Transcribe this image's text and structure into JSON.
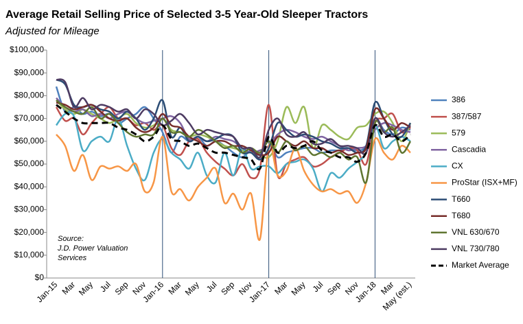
{
  "chart_data": {
    "type": "line",
    "title": "Average Retail Selling Price of Selected 3-5 Year-Old Sleeper Tractors",
    "subtitle": "Adjusted for Mileage",
    "annotation": [
      "Source:",
      "J.D. Power Valuation",
      "Services"
    ],
    "categories": [
      "Jan-15",
      null,
      "Mar",
      null,
      "May",
      null,
      "Jul",
      null,
      "Sep",
      null,
      "Nov",
      null,
      "Jan-16",
      null,
      "Mar",
      null,
      "May",
      null,
      "Jul",
      null,
      "Sep",
      null,
      "Nov",
      null,
      "Jan-17",
      null,
      "Mar",
      null,
      "May",
      null,
      "Jul",
      null,
      "Sep",
      null,
      "Nov",
      null,
      "Jan-18",
      null,
      "Mar",
      null,
      "May (est.)"
    ],
    "ylim": [
      0,
      100000
    ],
    "yticks": [
      {
        "value": 0,
        "label": "$0"
      },
      {
        "value": 10000,
        "label": "$10,000"
      },
      {
        "value": 20000,
        "label": "$20,000"
      },
      {
        "value": 30000,
        "label": "$30,000"
      },
      {
        "value": 40000,
        "label": "$40,000"
      },
      {
        "value": 50000,
        "label": "$50,000"
      },
      {
        "value": 60000,
        "label": "$60,000"
      },
      {
        "value": 70000,
        "label": "$70,000"
      },
      {
        "value": 80000,
        "label": "$80,000"
      },
      {
        "value": 90000,
        "label": "$90,000"
      },
      {
        "value": 100000,
        "label": "$100,000"
      }
    ],
    "legend": "right",
    "series": [
      {
        "name": "386",
        "color": "#4f81bd",
        "values": [
          84000,
          73000,
          75000,
          72000,
          73000,
          71000,
          72000,
          68000,
          70000,
          72000,
          75000,
          70000,
          64000,
          55000,
          62000,
          60000,
          62000,
          58000,
          60000,
          58000,
          55000,
          53000,
          56000,
          54000,
          60000,
          53000,
          55000,
          56000,
          57000,
          57000,
          55000,
          56000,
          56000,
          57000,
          56000,
          58000,
          70000,
          65000,
          63000,
          66000,
          65000
        ]
      },
      {
        "name": "387/587",
        "color": "#c0504d",
        "values": [
          75000,
          69000,
          70000,
          63000,
          68000,
          72000,
          75000,
          70000,
          70000,
          67000,
          68000,
          65000,
          67000,
          57000,
          54000,
          60000,
          61000,
          55000,
          51000,
          48000,
          45000,
          50000,
          44000,
          48000,
          76000,
          45000,
          50000,
          52000,
          53000,
          49000,
          50000,
          53000,
          55000,
          57000,
          56000,
          50000,
          68000,
          70000,
          72000,
          64000,
          66000
        ]
      },
      {
        "name": "579",
        "color": "#9bbb59",
        "values": [
          78000,
          74000,
          72000,
          74000,
          72000,
          70000,
          68000,
          70000,
          72000,
          68000,
          66000,
          67000,
          70000,
          65000,
          64000,
          62000,
          63000,
          62000,
          60000,
          58000,
          57000,
          56000,
          55000,
          54000,
          53000,
          60000,
          75000,
          68000,
          75000,
          57000,
          67000,
          65000,
          62000,
          61000,
          66000,
          67000,
          72000,
          73000,
          68000,
          60000,
          68000
        ]
      },
      {
        "name": "Cascadia",
        "color": "#8064a2",
        "values": [
          79000,
          75000,
          73000,
          74000,
          71000,
          72000,
          70000,
          72000,
          73000,
          70000,
          68000,
          69000,
          70000,
          71000,
          68000,
          61000,
          62000,
          60000,
          62000,
          61000,
          60000,
          57000,
          55000,
          56000,
          58000,
          63000,
          65000,
          64000,
          62000,
          61000,
          62000,
          60000,
          58000,
          56000,
          57000,
          58000,
          65000,
          68000,
          67000,
          65000,
          64000
        ]
      },
      {
        "name": "CX",
        "color": "#4bacc6",
        "values": [
          67000,
          72000,
          71000,
          56000,
          60000,
          62000,
          60000,
          70000,
          58000,
          48000,
          43000,
          55000,
          61000,
          55000,
          52000,
          48000,
          55000,
          45000,
          42000,
          55000,
          45000,
          57000,
          48000,
          49000,
          49000,
          46000,
          50000,
          51000,
          52000,
          48000,
          38000,
          46000,
          44000,
          48000,
          51000,
          55000,
          67000,
          57000,
          60000,
          62000,
          60000
        ]
      },
      {
        "name": "ProStar (ISX+MF)",
        "color": "#f79646",
        "values": [
          63000,
          58000,
          47000,
          54000,
          43000,
          49000,
          48000,
          49000,
          47000,
          50000,
          38000,
          42000,
          62000,
          38000,
          39000,
          34000,
          40000,
          44000,
          48000,
          33000,
          37000,
          30000,
          37000,
          17000,
          58000,
          45000,
          47000,
          57000,
          47000,
          41000,
          38000,
          39000,
          37000,
          38000,
          33000,
          42000,
          61000,
          55000,
          52000,
          58000,
          55000
        ]
      },
      {
        "name": "T660",
        "color": "#2c4d75",
        "values": [
          87000,
          85000,
          76000,
          75000,
          76000,
          74000,
          73000,
          70000,
          73000,
          70000,
          65000,
          70000,
          78000,
          62000,
          66000,
          60000,
          62000,
          60000,
          61000,
          63000,
          62000,
          55000,
          55000,
          52000,
          57000,
          68000,
          65000,
          62000,
          63000,
          62000,
          60000,
          59000,
          57000,
          57000,
          55000,
          58000,
          77000,
          70000,
          63000,
          62000,
          68000
        ]
      },
      {
        "name": "T680",
        "color": "#772c2a",
        "values": [
          77000,
          76000,
          74000,
          75000,
          76000,
          73000,
          70000,
          69000,
          70000,
          66000,
          64000,
          66000,
          72000,
          67000,
          66000,
          62000,
          60000,
          58000,
          60000,
          60000,
          58000,
          58000,
          56000,
          54000,
          55000,
          62000,
          60000,
          58000,
          60000,
          57000,
          57000,
          55000,
          56000,
          54000,
          55000,
          57000,
          74000,
          70000,
          65000,
          68000,
          66000
        ]
      },
      {
        "name": "VNL 630/670",
        "color": "#5f7530",
        "values": [
          78000,
          75000,
          73000,
          72000,
          75000,
          70000,
          72000,
          68000,
          64000,
          62000,
          63000,
          63000,
          70000,
          64000,
          64000,
          62000,
          65000,
          63000,
          60000,
          57000,
          58000,
          55000,
          57000,
          55000,
          60000,
          55000,
          60000,
          56000,
          58000,
          54000,
          55000,
          53000,
          55000,
          52000,
          53000,
          42000,
          68000,
          64000,
          66000,
          55000,
          60000
        ]
      },
      {
        "name": "VNL 730/780",
        "color": "#4d3b62",
        "values": [
          87000,
          86000,
          75000,
          79000,
          74000,
          76000,
          75000,
          73000,
          74000,
          70000,
          74000,
          72000,
          67000,
          69000,
          72000,
          68000,
          63000,
          65000,
          64000,
          63000,
          62000,
          57000,
          57000,
          53000,
          65000,
          70000,
          63000,
          62000,
          64000,
          59000,
          59000,
          61000,
          58000,
          58000,
          57000,
          55000,
          70000,
          64000,
          62000,
          64000,
          67000
        ]
      },
      {
        "name": "Market Average",
        "color": "#000000",
        "line_style": "dashed",
        "values": [
          76000,
          73000,
          70000,
          68000,
          68000,
          68000,
          68000,
          66000,
          65000,
          63000,
          60000,
          62000,
          67000,
          61000,
          60000,
          58000,
          59000,
          57000,
          55000,
          55000,
          54000,
          53000,
          52000,
          48000,
          62000,
          55000,
          58000,
          57000,
          58000,
          60000,
          56000,
          55000,
          53000,
          53000,
          51000,
          55000,
          67000,
          62000,
          63000,
          60000,
          63000
        ]
      }
    ]
  }
}
